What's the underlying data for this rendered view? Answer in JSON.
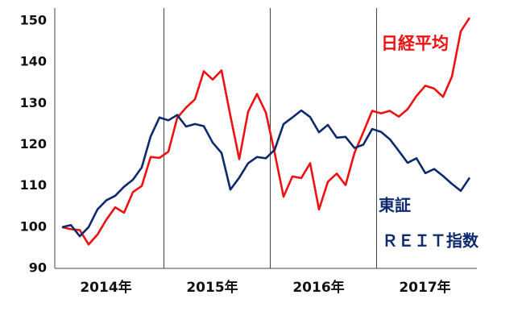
{
  "chart_data": {
    "type": "line",
    "categories": [
      null,
      null,
      null,
      null,
      null,
      null,
      null,
      null,
      null,
      null,
      null,
      null,
      null,
      null,
      null,
      null,
      null,
      null,
      null,
      null,
      null,
      null,
      null,
      null,
      null,
      null,
      null,
      null,
      null,
      null,
      null,
      null,
      null,
      null,
      null,
      null,
      null,
      null,
      null,
      null,
      null,
      null,
      null,
      null,
      null,
      null,
      null
    ],
    "year_labels": [
      "2014年",
      "2015年",
      "2016年",
      "2017年"
    ],
    "ylim": [
      90,
      150
    ],
    "yticks": [
      90,
      100,
      110,
      120,
      130,
      140,
      150
    ],
    "series": [
      {
        "name": "日経平均",
        "color": "#ee1111",
        "values": [
          100,
          99.5,
          99.3,
          95.8,
          98.2,
          101.8,
          104.8,
          103.5,
          108.5,
          110,
          117,
          116.8,
          118.3,
          126.5,
          129,
          131,
          137.8,
          135.8,
          138,
          127,
          116.5,
          128,
          132.3,
          127.8,
          118,
          107.4,
          112.3,
          111.9,
          115.5,
          104.3,
          111,
          113,
          110.2,
          118,
          123,
          128.2,
          127.6,
          128.2,
          126.8,
          128.6,
          131.8,
          134.3,
          133.6,
          131.6,
          136.5,
          147.5,
          150.8
        ]
      },
      {
        "name": [
          "東証",
          "ＲＥＩＴ指数"
        ],
        "color": "#0d2a6e",
        "values": [
          100,
          100.5,
          97.8,
          100,
          104.3,
          106.5,
          107.6,
          109.8,
          111.5,
          114.5,
          122,
          126.6,
          125.9,
          127.2,
          124.4,
          125,
          124.5,
          120.5,
          118,
          109.1,
          112,
          115.5,
          117,
          116.7,
          118.8,
          125,
          126.6,
          128.3,
          126.7,
          123,
          124.8,
          121.7,
          121.9,
          119.2,
          120,
          123.8,
          123.1,
          121.3,
          118.5,
          115.6,
          116.7,
          113.1,
          114.1,
          112.4,
          110.5,
          108.8,
          112
        ]
      }
    ]
  }
}
